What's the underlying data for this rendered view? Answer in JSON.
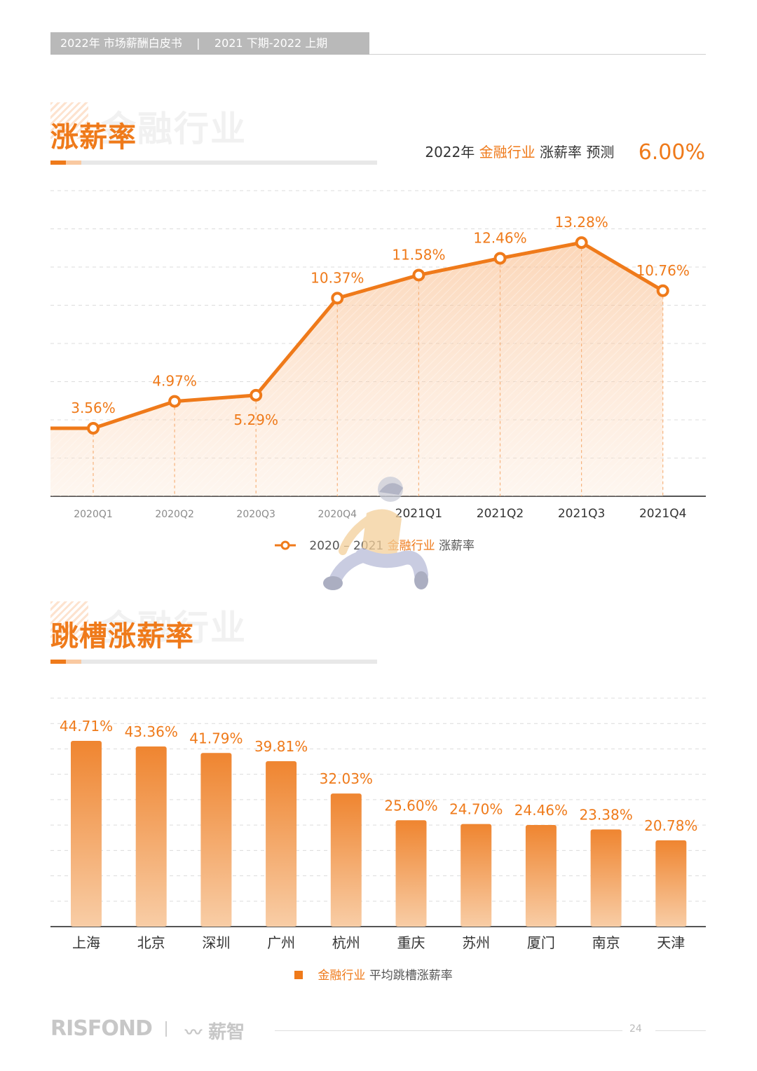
{
  "header": {
    "title": "2022年 市场薪酬白皮书    |    2021 下期-2022 上期"
  },
  "watermark_text": "金融行业",
  "page_number": "24",
  "footer": {
    "logo": "RISFOND",
    "brand": "薪智"
  },
  "section1": {
    "title": "涨薪率",
    "forecast_prefix": "2022年",
    "forecast_industry": "金融行业",
    "forecast_suffix": "涨薪率 预测",
    "forecast_value": "6.00%",
    "legend_years": "2020 – 2021",
    "legend_industry": "金融行业",
    "legend_metric": "涨薪率"
  },
  "section2": {
    "title": "跳槽涨薪率",
    "legend_industry": "金融行业",
    "legend_metric": "平均跳槽涨薪率"
  },
  "colors": {
    "accent": "#ef7a1a",
    "light_accent": "#f9c9a1",
    "gray": "#b9b9b9"
  },
  "chart_data": [
    {
      "type": "line",
      "title": "",
      "categories": [
        "2020Q1",
        "2020Q2",
        "2020Q3",
        "2020Q4",
        "2021Q1",
        "2021Q2",
        "2021Q3",
        "2021Q4"
      ],
      "series": [
        {
          "name": "2020 – 2021 金融行业 涨薪率",
          "values": [
            3.56,
            4.97,
            5.29,
            10.37,
            11.58,
            12.46,
            13.28,
            10.76
          ],
          "labels": [
            "3.56%",
            "4.97%",
            "5.29%",
            "10.37%",
            "11.58%",
            "12.46%",
            "13.28%",
            "10.76%"
          ]
        }
      ],
      "ylim": [
        0,
        16
      ],
      "grid": true,
      "area_fill": true
    },
    {
      "type": "bar",
      "title": "",
      "categories": [
        "上海",
        "北京",
        "深圳",
        "广州",
        "杭州",
        "重庆",
        "苏州",
        "厦门",
        "南京",
        "天津"
      ],
      "series": [
        {
          "name": "金融行业 平均跳槽涨薪率",
          "values": [
            44.71,
            43.36,
            41.79,
            39.81,
            32.03,
            25.6,
            24.7,
            24.46,
            23.38,
            20.78
          ],
          "labels": [
            "44.71%",
            "43.36%",
            "41.79%",
            "39.81%",
            "32.03%",
            "25.60%",
            "24.70%",
            "24.46%",
            "23.38%",
            "20.78%"
          ]
        }
      ],
      "ylim": [
        0,
        55
      ],
      "grid": true
    }
  ]
}
